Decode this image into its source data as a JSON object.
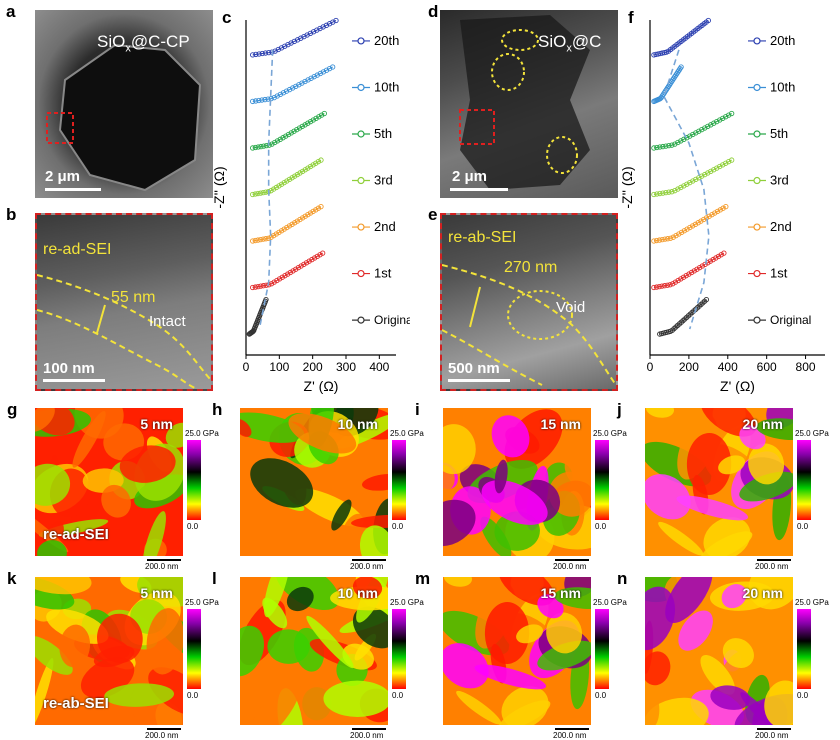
{
  "panels": {
    "a": {
      "label": "a",
      "title": "SiOx@C-CP",
      "title_main": "SiO",
      "title_sub": "x",
      "title_rest": "@C-CP",
      "scale": "2 μm"
    },
    "b": {
      "label": "b",
      "sei": "re-ad-SEI",
      "thickness": "55 nm",
      "state": "Intact",
      "scale": "100 nm"
    },
    "c": {
      "label": "c"
    },
    "d": {
      "label": "d",
      "title_main": "SiO",
      "title_sub": "x",
      "title_rest": "@C",
      "scale": "2 μm"
    },
    "e": {
      "label": "e",
      "sei": "re-ab-SEI",
      "thickness": "270 nm",
      "state": "Void",
      "scale": "500 nm"
    },
    "f": {
      "label": "f"
    }
  },
  "afm": {
    "top": [
      {
        "label": "g",
        "depth": "5 nm",
        "sei": "re-ad-SEI"
      },
      {
        "label": "h",
        "depth": "10 nm"
      },
      {
        "label": "i",
        "depth": "15 nm"
      },
      {
        "label": "j",
        "depth": "20 nm"
      }
    ],
    "bottom": [
      {
        "label": "k",
        "depth": "5 nm",
        "sei": "re-ab-SEI"
      },
      {
        "label": "l",
        "depth": "10 nm"
      },
      {
        "label": "m",
        "depth": "15 nm"
      },
      {
        "label": "n",
        "depth": "20 nm"
      }
    ],
    "cbar_max": "25.0 GPa",
    "cbar_min": "0.0",
    "scale": "200.0 nm"
  },
  "chart_data": [
    {
      "type": "line",
      "panel": "c",
      "xlabel": "Z' (Ω)",
      "ylabel": "-Z'' (Ω)",
      "xlim": [
        0,
        450
      ],
      "xticks": [
        0,
        100,
        200,
        300,
        400
      ],
      "series_names": [
        "20th",
        "10th",
        "5th",
        "3rd",
        "2nd",
        "1st",
        "Original"
      ],
      "colors": [
        "#2b3fb0",
        "#3a8fd6",
        "#2aa84a",
        "#8fcf3a",
        "#f39a2a",
        "#e02a2a",
        "#333333"
      ],
      "series_end_x": [
        270,
        260,
        235,
        225,
        225,
        230,
        60
      ],
      "series_start_x": [
        20,
        20,
        20,
        20,
        20,
        20,
        10
      ]
    },
    {
      "type": "line",
      "panel": "f",
      "xlabel": "Z' (Ω)",
      "ylabel": "-Z'' (Ω)",
      "xlim": [
        0,
        900
      ],
      "xticks": [
        0,
        200,
        400,
        600,
        800
      ],
      "series_names": [
        "20th",
        "10th",
        "5th",
        "3rd",
        "2nd",
        "1st",
        "Original"
      ],
      "colors": [
        "#2b3fb0",
        "#3a8fd6",
        "#2aa84a",
        "#8fcf3a",
        "#f39a2a",
        "#e02a2a",
        "#333333"
      ],
      "series_end_x": [
        300,
        160,
        420,
        420,
        390,
        380,
        290
      ],
      "series_start_x": [
        20,
        20,
        20,
        20,
        20,
        20,
        50
      ]
    }
  ]
}
